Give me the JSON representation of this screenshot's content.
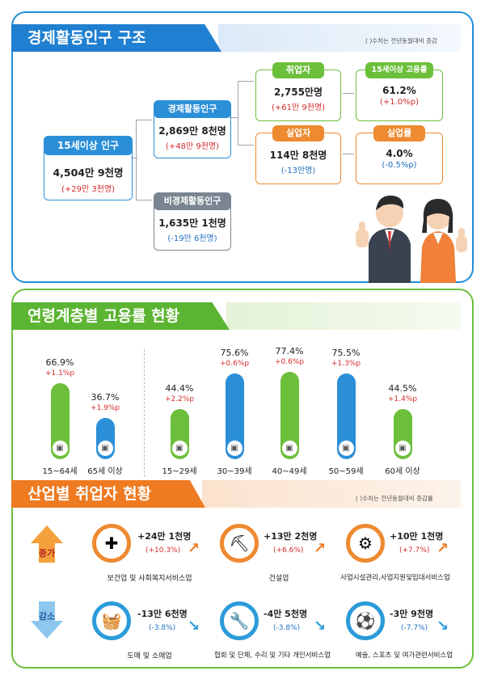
{
  "section1": {
    "title": "경제활동인구 구조",
    "note": "( )수치는 전년동월대비 증감",
    "pop15": {
      "label": "15세이상 인구",
      "value": "4,504만 9천명",
      "change": "(+29만 3천명)"
    },
    "active": {
      "label": "경제활동인구",
      "value": "2,869만 8천명",
      "change": "(+48만 9천명)"
    },
    "inactive": {
      "label": "비경제활동인구",
      "value": "1,635만 1천명",
      "change": "(-19만 6천명)"
    },
    "employed": {
      "label": "취업자",
      "value": "2,755만명",
      "change": "(+61만 9천명)"
    },
    "unemployed": {
      "label": "실업자",
      "value": "114만 8천명",
      "change": "(-13만명)"
    },
    "emp_rate": {
      "label": "15세이상 고용률",
      "value": "61.2%",
      "change": "(+1.0%p)"
    },
    "unemp_rate": {
      "label": "실업률",
      "value": "4.0%",
      "change": "(-0.5%p)"
    }
  },
  "section2": {
    "title": "연령계층별 고용률 현황",
    "chart_data": {
      "type": "bar",
      "categories": [
        "15~64세",
        "65세 이상",
        "15~29세",
        "30~39세",
        "40~49세",
        "50~59세",
        "60세 이상"
      ],
      "values": [
        66.9,
        36.7,
        44.4,
        75.6,
        77.4,
        75.5,
        44.5
      ],
      "value_labels": [
        "66.9%",
        "36.7%",
        "44.4%",
        "75.6%",
        "77.4%",
        "75.5%",
        "44.5%"
      ],
      "changes": [
        "+1.1%p",
        "+1.9%p",
        "+2.2%p",
        "+0.6%p",
        "+0.6%p",
        "+1.3%p",
        "+1.4%p"
      ],
      "colors": [
        "#6cbf3b",
        "#2b8fd8",
        "#6cbf3b",
        "#2b8fd8",
        "#6cbf3b",
        "#2b8fd8",
        "#6cbf3b"
      ]
    }
  },
  "section3": {
    "title": "산업별 취업자 현황",
    "note": "( )수치는 전년동월대비 증감률",
    "increase_label": "증가",
    "decrease_label": "감소",
    "increase": [
      {
        "value": "+24만 1천명",
        "change": "(+10.3%)",
        "name": "보건업 및 사회복지서비스업",
        "icon": "first-aid-icon"
      },
      {
        "value": "+13만 2천명",
        "change": "(+6.6%)",
        "name": "건설업",
        "icon": "excavator-icon"
      },
      {
        "value": "+10만 1천명",
        "change": "(+7.7%)",
        "name": "사업시설관리,사업지원및임대서비스업",
        "icon": "tools-people-icon"
      }
    ],
    "decrease": [
      {
        "value": "-13만 6천명",
        "change": "(-3.8%)",
        "name": "도매 및 소매업",
        "icon": "shopping-basket-icon"
      },
      {
        "value": "-4만 5천명",
        "change": "(-3.8%)",
        "name": "협회 및 단체, 수리 및 기타 개인서비스업",
        "icon": "repair-icon"
      },
      {
        "value": "-3만 9천명",
        "change": "(-7.7%)",
        "name": "예술, 스포츠 및 여가관련서비스업",
        "icon": "sports-icon"
      }
    ]
  }
}
